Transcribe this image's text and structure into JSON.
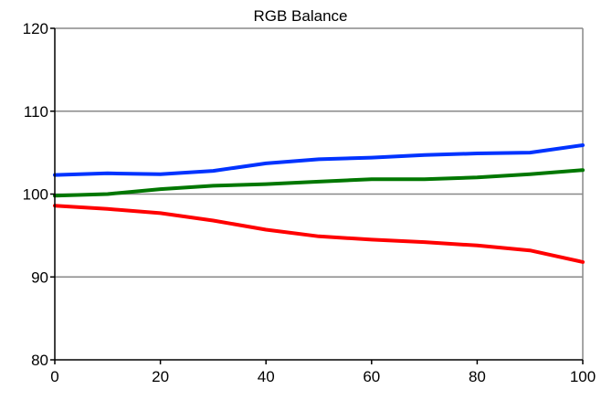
{
  "chart_data": {
    "type": "line",
    "title": "RGB Balance",
    "xlabel": "",
    "ylabel": "",
    "x": [
      0,
      10,
      20,
      30,
      40,
      50,
      60,
      70,
      80,
      90,
      100
    ],
    "xlim": [
      0,
      100
    ],
    "ylim": [
      80,
      120
    ],
    "xticks": [
      0,
      20,
      40,
      60,
      80,
      100
    ],
    "yticks": [
      80,
      90,
      100,
      110,
      120
    ],
    "grid": "horizontal",
    "legend": "none",
    "series": [
      {
        "color": "#0033ff",
        "values": [
          102.3,
          102.5,
          102.4,
          102.8,
          103.7,
          104.2,
          104.4,
          104.7,
          104.9,
          105.0,
          105.9
        ]
      },
      {
        "color": "#007700",
        "values": [
          99.8,
          100.0,
          100.6,
          101.0,
          101.2,
          101.5,
          101.8,
          101.8,
          102.0,
          102.4,
          102.9
        ]
      },
      {
        "color": "#ff0000",
        "values": [
          98.6,
          98.2,
          97.7,
          96.8,
          95.7,
          94.9,
          94.5,
          94.2,
          93.8,
          93.2,
          91.8
        ]
      }
    ],
    "colors": {
      "grid": "#888888",
      "axis": "#000000",
      "frame": "#888888"
    }
  }
}
